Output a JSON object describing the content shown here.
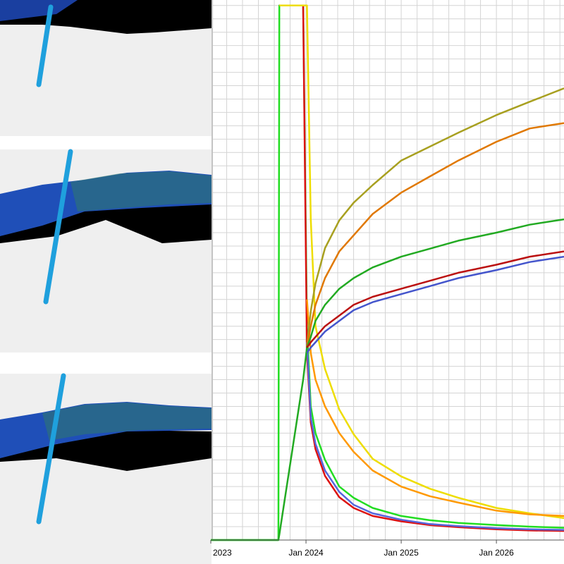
{
  "chart_data": {
    "type": "line",
    "x": [
      2023.0,
      2023.71,
      2023.72,
      2023.97,
      2024.01,
      2024.05,
      2024.1,
      2024.2,
      2024.35,
      2024.5,
      2024.7,
      2025.0,
      2025.3,
      2025.6,
      2026.0,
      2026.35,
      2026.71
    ],
    "series": [
      {
        "color": "#22dd22",
        "values": [
          0,
          0,
          1,
          1,
          0.4,
          0.25,
          0.2,
          0.15,
          0.1,
          0.079,
          0.06,
          0.045,
          0.037,
          0.032,
          0.028,
          0.025,
          0.023
        ]
      },
      {
        "color": "#dd1111",
        "values": [
          null,
          null,
          1,
          1,
          0.35,
          0.22,
          0.17,
          0.12,
          0.08,
          0.06,
          0.045,
          0.035,
          0.028,
          0.024,
          0.02,
          0.018,
          0.017
        ]
      },
      {
        "color": "#5566dd",
        "values": [
          null,
          null,
          null,
          null,
          0.37,
          0.23,
          0.18,
          0.13,
          0.09,
          0.066,
          0.05,
          0.038,
          0.03,
          0.026,
          0.022,
          0.02,
          0.019
        ]
      },
      {
        "color": "#eedd00",
        "values": [
          null,
          null,
          1,
          1,
          1,
          0.6,
          0.4,
          0.32,
          0.244,
          0.198,
          0.152,
          0.119,
          0.096,
          0.079,
          0.06,
          0.05,
          0.041
        ]
      },
      {
        "color": "#ff9900",
        "values": [
          null,
          null,
          null,
          null,
          0.45,
          0.35,
          0.3,
          0.25,
          0.2,
          0.165,
          0.13,
          0.1,
          0.082,
          0.07,
          0.055,
          0.048,
          0.045
        ]
      },
      {
        "color": "#a8a020",
        "values": [
          null,
          null,
          null,
          null,
          0.362,
          0.428,
          0.48,
          0.546,
          0.598,
          0.631,
          0.664,
          0.71,
          0.736,
          0.762,
          0.795,
          0.82,
          0.845
        ]
      },
      {
        "color": "#e07800",
        "values": [
          null,
          null,
          null,
          null,
          0.36,
          0.4,
          0.44,
          0.49,
          0.54,
          0.57,
          0.61,
          0.65,
          0.68,
          0.71,
          0.745,
          0.77,
          0.78
        ]
      },
      {
        "color": "#22aa22",
        "values": [
          0,
          0,
          0.01,
          0.3,
          0.36,
          0.38,
          0.41,
          0.44,
          0.47,
          0.49,
          0.51,
          0.53,
          0.545,
          0.56,
          0.575,
          0.59,
          0.6
        ]
      },
      {
        "color": "#4455cc",
        "values": [
          null,
          null,
          null,
          null,
          0.35,
          0.36,
          0.37,
          0.39,
          0.41,
          0.43,
          0.445,
          0.46,
          0.475,
          0.49,
          0.505,
          0.52,
          0.53
        ]
      },
      {
        "color": "#bb1111",
        "values": [
          null,
          null,
          null,
          null,
          0.36,
          0.37,
          0.38,
          0.4,
          0.42,
          0.44,
          0.455,
          0.47,
          0.485,
          0.5,
          0.515,
          0.53,
          0.54
        ]
      }
    ],
    "xlim": [
      2023.0,
      2026.71
    ],
    "ylim": [
      0,
      1.005
    ],
    "xticks": [
      {
        "value": 2023,
        "label": "2023"
      },
      {
        "value": 2024,
        "label": "Jan 2024"
      },
      {
        "value": 2025,
        "label": "Jan 2025"
      },
      {
        "value": 2026,
        "label": "Jan 2026"
      }
    ],
    "xgrid": [
      2023.167,
      2023.333,
      2023.5,
      2023.667,
      2023.833,
      2024,
      2024.167,
      2024.333,
      2024.5,
      2024.667,
      2024.833,
      2025,
      2025.167,
      2025.333,
      2025.5,
      2025.667,
      2025.833,
      2026,
      2026.167,
      2026.333,
      2026.5,
      2026.667
    ],
    "ygrid": [
      0.025,
      0.05,
      0.075,
      0.1,
      0.125,
      0.15,
      0.175,
      0.2,
      0.225,
      0.25,
      0.275,
      0.3,
      0.325,
      0.35,
      0.375,
      0.4,
      0.425,
      0.45,
      0.475,
      0.5,
      0.525,
      0.55,
      0.575,
      0.6,
      0.625,
      0.65,
      0.675,
      0.7,
      0.725,
      0.75,
      0.775,
      0.8,
      0.825,
      0.85,
      0.875,
      0.9,
      0.925,
      0.95,
      0.975,
      1.0
    ],
    "grid": true
  }
}
